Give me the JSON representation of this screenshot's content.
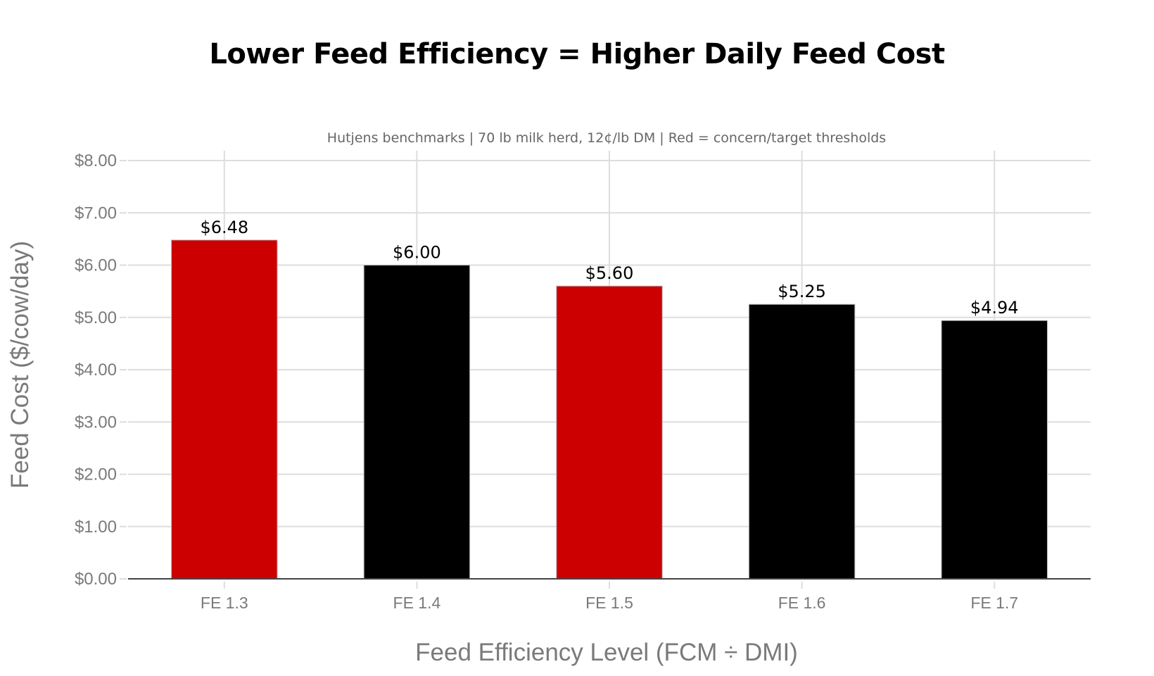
{
  "chart_data": {
    "type": "bar",
    "title": "Lower Feed Efficiency = Higher Daily Feed Cost",
    "subtitle": "Hutjens benchmarks | 70 lb milk herd, 12¢/lb DM | Red = concern/target thresholds",
    "xlabel": "Feed Efficiency Level (FCM ÷ DMI)",
    "ylabel": "Feed Cost ($/cow/day)",
    "categories": [
      "FE 1.3",
      "FE 1.4",
      "FE 1.5",
      "FE 1.6",
      "FE 1.7"
    ],
    "values": [
      6.48,
      6.0,
      5.6,
      5.25,
      4.94
    ],
    "data_labels": [
      "$6.48",
      "$6.00",
      "$5.60",
      "$5.25",
      "$4.94"
    ],
    "bar_colors": [
      "#cc0000",
      "#000000",
      "#cc0000",
      "#000000",
      "#000000"
    ],
    "highlighted": [
      true,
      false,
      true,
      false,
      false
    ],
    "ylim": [
      0,
      8
    ],
    "yticks": [
      0,
      1,
      2,
      3,
      4,
      5,
      6,
      7,
      8
    ],
    "ytick_labels": [
      "$0.00",
      "$1.00",
      "$2.00",
      "$3.00",
      "$4.00",
      "$5.00",
      "$6.00",
      "$7.00",
      "$8.00"
    ],
    "grid": true,
    "legend": "none",
    "colors": {
      "highlight": "#cc0000",
      "normal": "#000000",
      "grid": "#dddddd",
      "axis_text": "#7a7a7a"
    }
  }
}
